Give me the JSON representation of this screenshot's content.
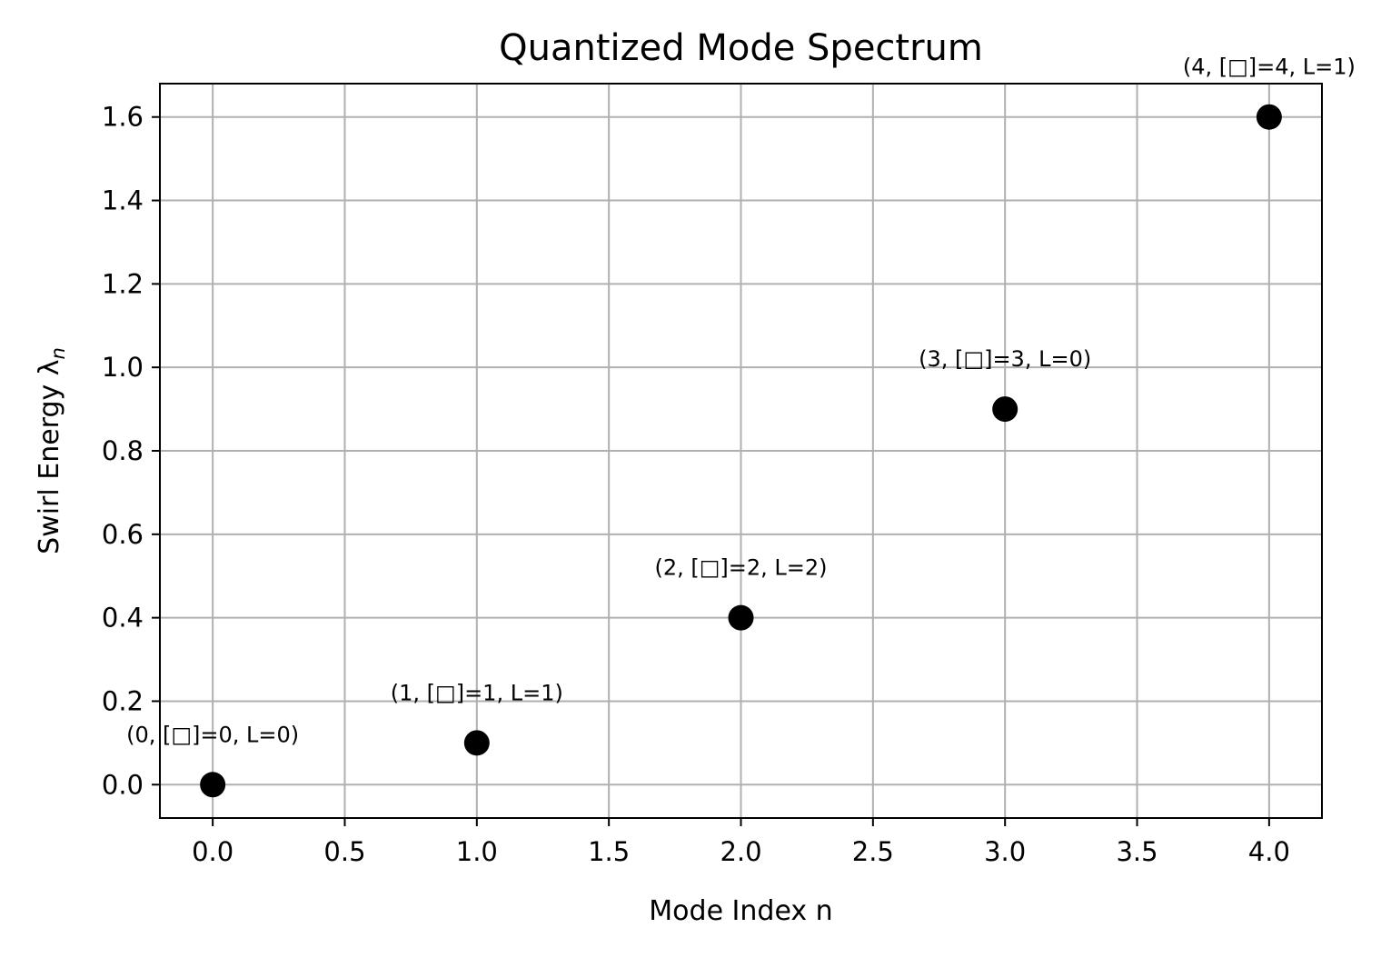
{
  "chart_data": {
    "type": "scatter",
    "title": "Quantized Mode Spectrum",
    "xlabel": "Mode Index n",
    "ylabel": "Swirl Energy λ",
    "ylabel_subscript": "n",
    "xlim": [
      -0.2,
      4.2
    ],
    "ylim": [
      -0.08,
      1.68
    ],
    "xticks": [
      0.0,
      0.5,
      1.0,
      1.5,
      2.0,
      2.5,
      3.0,
      3.5,
      4.0
    ],
    "xtick_labels": [
      "0.0",
      "0.5",
      "1.0",
      "1.5",
      "2.0",
      "2.5",
      "3.0",
      "3.5",
      "4.0"
    ],
    "yticks": [
      0.0,
      0.2,
      0.4,
      0.6,
      0.8,
      1.0,
      1.2,
      1.4,
      1.6
    ],
    "ytick_labels": [
      "0.0",
      "0.2",
      "0.4",
      "0.6",
      "0.8",
      "1.0",
      "1.2",
      "1.4",
      "1.6"
    ],
    "grid": true,
    "point_color": "#000000",
    "grid_color": "#b0b0b0",
    "points": [
      {
        "x": 0,
        "y": 0.0,
        "label": "(0, [□]=0, L=0)"
      },
      {
        "x": 1,
        "y": 0.1,
        "label": "(1, [□]=1, L=1)"
      },
      {
        "x": 2,
        "y": 0.4,
        "label": "(2, [□]=2, L=2)"
      },
      {
        "x": 3,
        "y": 0.9,
        "label": "(3, [□]=3, L=0)"
      },
      {
        "x": 4,
        "y": 1.6,
        "label": "(4, [□]=4, L=1)"
      }
    ]
  }
}
